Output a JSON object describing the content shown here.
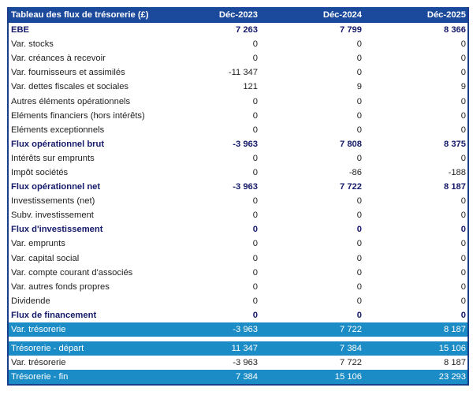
{
  "table": {
    "title": "Tableau des flux de trésorerie (£)",
    "columns": [
      "Déc-2023",
      "Déc-2024",
      "Déc-2025"
    ],
    "rows": [
      {
        "label": "EBE",
        "values": [
          "7 263",
          "7 799",
          "8 366"
        ],
        "style": "bold"
      },
      {
        "label": "Var. stocks",
        "values": [
          "0",
          "0",
          "0"
        ],
        "style": ""
      },
      {
        "label": "Var. créances à recevoir",
        "values": [
          "0",
          "0",
          "0"
        ],
        "style": ""
      },
      {
        "label": "Var. fournisseurs et assimilés",
        "values": [
          "-11 347",
          "0",
          "0"
        ],
        "style": ""
      },
      {
        "label": "Var. dettes fiscales et sociales",
        "values": [
          "121",
          "9",
          "9"
        ],
        "style": ""
      },
      {
        "label": "Autres éléments opérationnels",
        "values": [
          "0",
          "0",
          "0"
        ],
        "style": ""
      },
      {
        "label": "Eléments financiers (hors intérêts)",
        "values": [
          "0",
          "0",
          "0"
        ],
        "style": ""
      },
      {
        "label": "Eléments exceptionnels",
        "values": [
          "0",
          "0",
          "0"
        ],
        "style": ""
      },
      {
        "label": "Flux opérationnel brut",
        "values": [
          "-3 963",
          "7 808",
          "8 375"
        ],
        "style": "bold"
      },
      {
        "label": "Intérêts sur emprunts",
        "values": [
          "0",
          "0",
          "0"
        ],
        "style": ""
      },
      {
        "label": "Impôt sociétés",
        "values": [
          "0",
          "-86",
          "-188"
        ],
        "style": ""
      },
      {
        "label": "Flux opérationnel net",
        "values": [
          "-3 963",
          "7 722",
          "8 187"
        ],
        "style": "bold"
      },
      {
        "label": "Investissements (net)",
        "values": [
          "0",
          "0",
          "0"
        ],
        "style": ""
      },
      {
        "label": "Subv. investissement",
        "values": [
          "0",
          "0",
          "0"
        ],
        "style": ""
      },
      {
        "label": "Flux d'investissement",
        "values": [
          "0",
          "0",
          "0"
        ],
        "style": "bold"
      },
      {
        "label": "Var. emprunts",
        "values": [
          "0",
          "0",
          "0"
        ],
        "style": ""
      },
      {
        "label": "Var. capital social",
        "values": [
          "0",
          "0",
          "0"
        ],
        "style": ""
      },
      {
        "label": "Var. compte courant d'associés",
        "values": [
          "0",
          "0",
          "0"
        ],
        "style": ""
      },
      {
        "label": "Var. autres fonds propres",
        "values": [
          "0",
          "0",
          "0"
        ],
        "style": ""
      },
      {
        "label": "Dividende",
        "values": [
          "0",
          "0",
          "0"
        ],
        "style": ""
      },
      {
        "label": "Flux de financement",
        "values": [
          "0",
          "0",
          "0"
        ],
        "style": "bold"
      },
      {
        "label": "Var. trésorerie",
        "values": [
          "-3 963",
          "7 722",
          "8 187"
        ],
        "style": "blue"
      },
      {
        "label": "",
        "values": [
          "",
          "",
          ""
        ],
        "style": "gap"
      },
      {
        "label": "Trésorerie - départ",
        "values": [
          "11 347",
          "7 384",
          "15 106"
        ],
        "style": "blue"
      },
      {
        "label": "Var. trésorerie",
        "values": [
          "-3 963",
          "7 722",
          "8 187"
        ],
        "style": ""
      },
      {
        "label": "Trésorerie - fin",
        "values": [
          "7 384",
          "15 106",
          "23 293"
        ],
        "style": "blue"
      }
    ]
  },
  "colors": {
    "header": "#1b4a9c",
    "highlight": "#1c8cc6",
    "bold_text": "#151a6a"
  }
}
